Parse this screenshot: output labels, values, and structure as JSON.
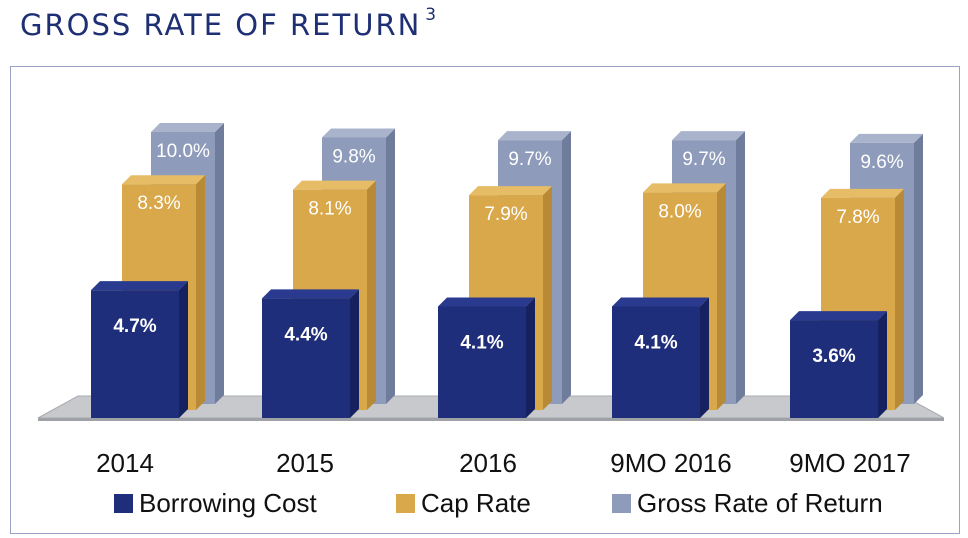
{
  "title": "GROSS RATE OF RETURN",
  "title_footnote": "3",
  "chart_data": {
    "type": "bar",
    "subtype": "3d-clustered-depth",
    "title": "GROSS RATE OF RETURN",
    "categories": [
      "2014",
      "2015",
      "2016",
      "9MO 2016",
      "9MO 2017"
    ],
    "series": [
      {
        "name": "Borrowing Cost",
        "values": [
          4.7,
          4.4,
          4.1,
          4.1,
          3.6
        ],
        "labels": [
          "4.7%",
          "4.4%",
          "4.1%",
          "4.1%",
          "3.6%"
        ],
        "color": "#1f2e7a",
        "side": "#162260",
        "top": "#2a3b8f"
      },
      {
        "name": "Cap Rate",
        "values": [
          8.3,
          8.1,
          7.9,
          8.0,
          7.8
        ],
        "labels": [
          "8.3%",
          "8.1%",
          "7.9%",
          "8.0%",
          "7.8%"
        ],
        "color": "#d9a84a",
        "side": "#b98a35",
        "top": "#e6bd66"
      },
      {
        "name": "Gross Rate of Return",
        "values": [
          10.0,
          9.8,
          9.7,
          9.7,
          9.6
        ],
        "labels": [
          "10.0%",
          "9.8%",
          "9.7%",
          "9.7%",
          "9.6%"
        ],
        "color": "#8e9bba",
        "side": "#6f7c9c",
        "top": "#a9b4cc"
      }
    ],
    "units": "%",
    "legend_position": "bottom",
    "grid": false
  }
}
